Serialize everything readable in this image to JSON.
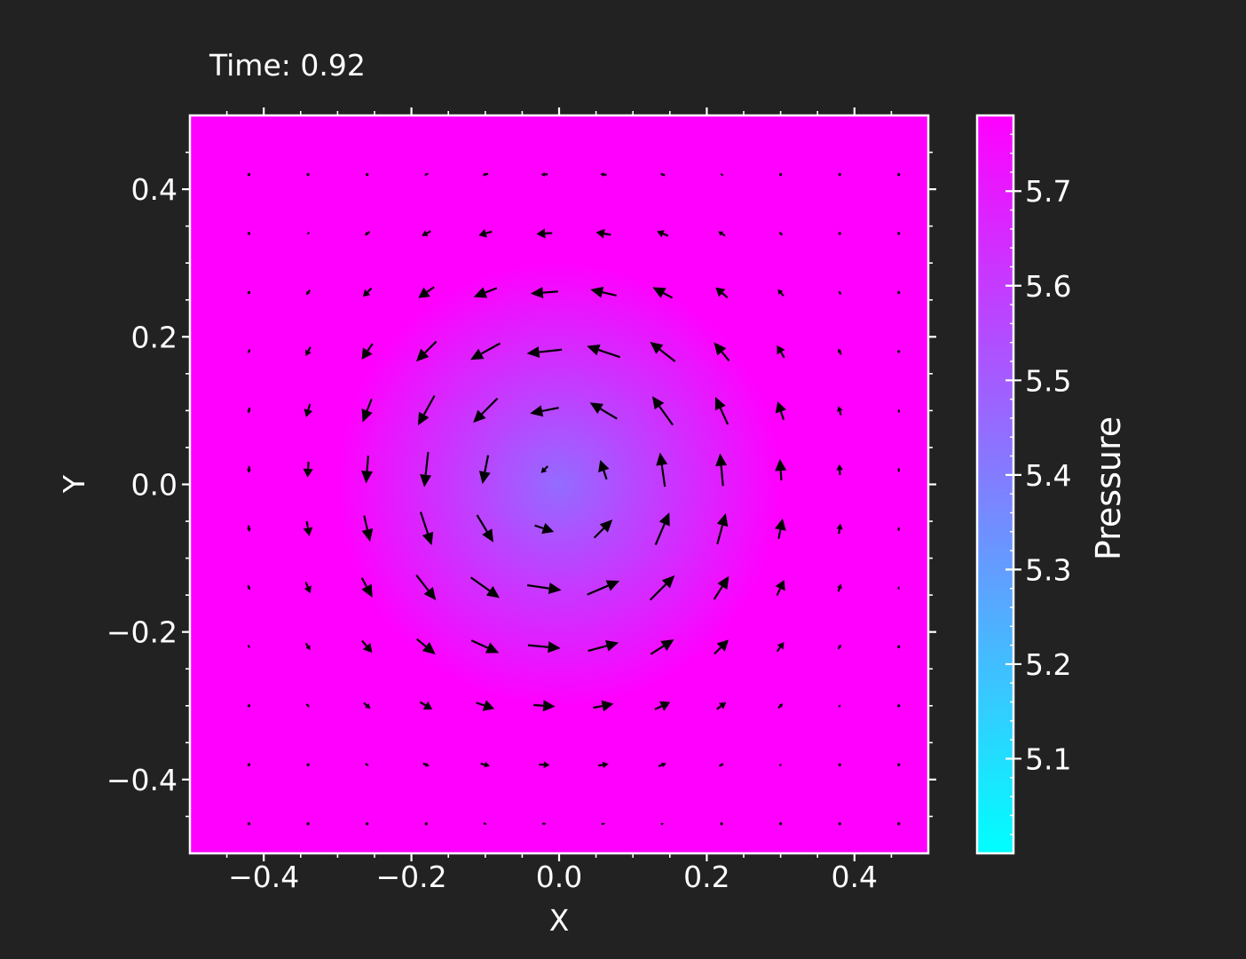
{
  "chart_data": {
    "type": "heatmap",
    "title": "Time: 0.92",
    "xlabel": "X",
    "ylabel": "Y",
    "xlim": [
      -0.5,
      0.5
    ],
    "ylim": [
      -0.5,
      0.5
    ],
    "x_ticks": [
      "−0.4",
      "−0.2",
      "0.0",
      "0.2",
      "0.4"
    ],
    "x_tick_values": [
      -0.4,
      -0.2,
      0.0,
      0.2,
      0.4
    ],
    "y_ticks": [
      "0.4",
      "0.2",
      "0.0",
      "−0.2",
      "−0.4"
    ],
    "y_tick_values": [
      0.4,
      0.2,
      0.0,
      -0.2,
      -0.4
    ],
    "colorbar": {
      "label": "Pressure",
      "range": [
        5.0,
        5.78
      ],
      "ticks": [
        "5.7",
        "5.6",
        "5.5",
        "5.4",
        "5.3",
        "5.2",
        "5.1"
      ],
      "tick_values": [
        5.7,
        5.6,
        5.5,
        5.4,
        5.3,
        5.2,
        5.1
      ],
      "colormap": [
        "#00ffff",
        "#ff00ff"
      ]
    },
    "pressure_field": {
      "center": [
        0.0,
        0.0
      ],
      "min_value": 5.45,
      "max_value": 5.78,
      "radius": 0.3
    },
    "vector_field": {
      "type": "quiver",
      "color": "#000000",
      "grid_x": [
        -0.42,
        -0.34,
        -0.26,
        -0.18,
        -0.1,
        -0.02,
        0.06,
        0.14,
        0.22,
        0.3,
        0.38,
        0.46
      ],
      "grid_y": [
        0.42,
        0.34,
        0.26,
        0.18,
        0.1,
        0.02,
        -0.06,
        -0.14,
        -0.22,
        -0.3,
        -0.38,
        -0.46
      ],
      "rotation": "counterclockwise",
      "core_radius": 0.17,
      "peak_speed": 1.0
    },
    "grid": false
  }
}
